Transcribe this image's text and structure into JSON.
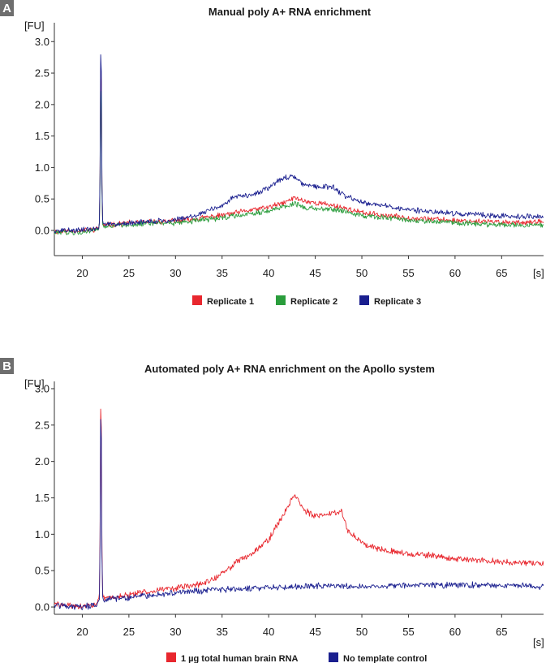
{
  "chart_data": [
    {
      "panel": "A",
      "type": "line",
      "title": "Manual poly A+ RNA enrichment",
      "ylabel": "[FU]",
      "xlabel": "[s]",
      "xlim": [
        17,
        69.5
      ],
      "ylim": [
        -0.4,
        3.3
      ],
      "xticks": [
        20,
        25,
        30,
        35,
        40,
        45,
        50,
        55,
        60,
        65
      ],
      "yticks": [
        0.0,
        0.5,
        1.0,
        1.5,
        2.0,
        2.5,
        3.0
      ],
      "legend_position": "bottom",
      "series": [
        {
          "name": "Replicate 1",
          "color": "#e8272e",
          "peak": 2.8,
          "x": [
            17,
            20,
            21.5,
            22.2,
            25,
            30,
            35,
            38,
            40,
            41.5,
            42.8,
            44,
            46,
            47.5,
            50,
            55,
            60,
            65,
            69.5
          ],
          "y": [
            -0.02,
            0.0,
            0.02,
            0.08,
            0.12,
            0.15,
            0.24,
            0.32,
            0.37,
            0.43,
            0.52,
            0.46,
            0.42,
            0.38,
            0.28,
            0.2,
            0.16,
            0.13,
            0.13
          ]
        },
        {
          "name": "Replicate 2",
          "color": "#2a9d3c",
          "peak": 2.4,
          "x": [
            17,
            20,
            21.5,
            22.2,
            25,
            30,
            35,
            38,
            40,
            42.8,
            44,
            47.5,
            50,
            55,
            60,
            65,
            69.5
          ],
          "y": [
            -0.04,
            -0.02,
            0.0,
            0.06,
            0.1,
            0.12,
            0.2,
            0.27,
            0.31,
            0.43,
            0.36,
            0.33,
            0.24,
            0.16,
            0.12,
            0.09,
            0.08
          ]
        },
        {
          "name": "Replicate 3",
          "color": "#1a1f8f",
          "peak": 3.0,
          "x": [
            17,
            20,
            21.5,
            22.2,
            25,
            30,
            33,
            35,
            36.5,
            38,
            40,
            41,
            42.5,
            43.5,
            45,
            47,
            48,
            50,
            55,
            60,
            65,
            69.5
          ],
          "y": [
            -0.01,
            0.01,
            0.03,
            0.1,
            0.12,
            0.17,
            0.28,
            0.4,
            0.55,
            0.55,
            0.68,
            0.79,
            0.88,
            0.75,
            0.7,
            0.68,
            0.56,
            0.45,
            0.33,
            0.27,
            0.23,
            0.22
          ]
        }
      ]
    },
    {
      "panel": "B",
      "type": "line",
      "title": "Automated poly A+ RNA enrichment on the Apollo system",
      "ylabel": "[FU]",
      "xlabel": "[s]",
      "xlim": [
        17,
        69.5
      ],
      "ylim": [
        -0.1,
        3.1
      ],
      "xticks": [
        20,
        25,
        30,
        35,
        40,
        45,
        50,
        55,
        60,
        65
      ],
      "yticks": [
        0.0,
        0.5,
        1.0,
        1.5,
        2.0,
        2.5,
        3.0
      ],
      "legend_position": "bottom",
      "series": [
        {
          "name": "1 µg total human brain RNA",
          "color": "#e8272e",
          "peak": 2.9,
          "x": [
            17,
            20,
            21.5,
            22.2,
            25,
            28,
            30,
            33,
            35,
            36.5,
            38,
            40,
            41.5,
            42.8,
            43.8,
            45,
            47,
            47.8,
            48.5,
            50,
            52,
            55,
            58,
            60,
            65,
            69.5
          ],
          "y": [
            0.04,
            0.0,
            0.05,
            0.12,
            0.16,
            0.24,
            0.26,
            0.32,
            0.45,
            0.62,
            0.72,
            0.93,
            1.25,
            1.56,
            1.33,
            1.24,
            1.3,
            1.32,
            1.05,
            0.88,
            0.8,
            0.73,
            0.7,
            0.66,
            0.62,
            0.59
          ]
        },
        {
          "name": "No template control",
          "color": "#1a1f8f",
          "peak": 2.75,
          "x": [
            17,
            20,
            21.5,
            22.2,
            25,
            30,
            35,
            40,
            45,
            50,
            55,
            60,
            65,
            69.5
          ],
          "y": [
            0.03,
            0.0,
            0.04,
            0.1,
            0.13,
            0.2,
            0.24,
            0.27,
            0.29,
            0.28,
            0.3,
            0.3,
            0.3,
            0.28
          ]
        }
      ]
    }
  ]
}
